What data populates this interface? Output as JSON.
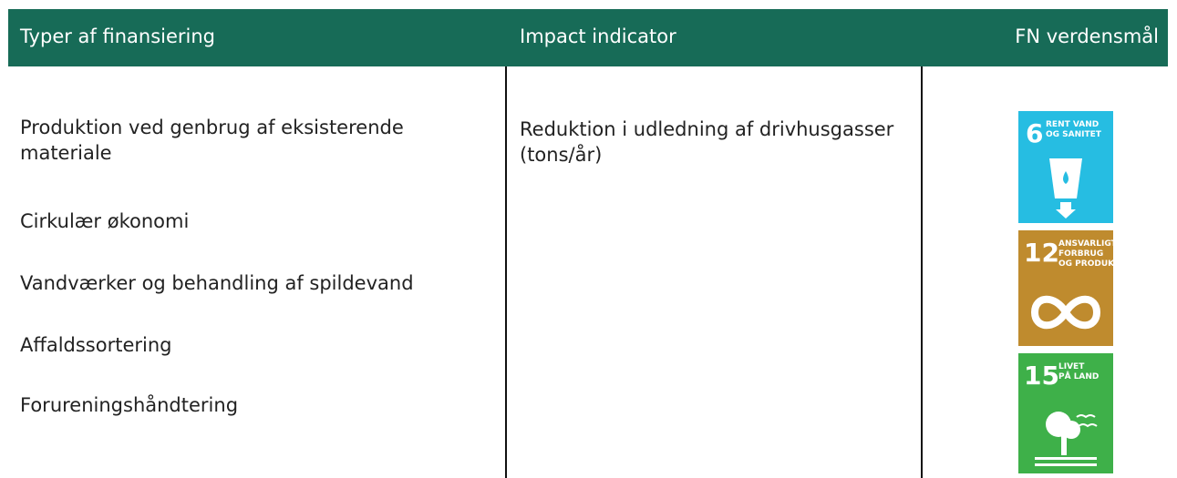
{
  "header": [
    "Typer af finansiering",
    "Impact indicator",
    "FN verdensmål"
  ],
  "financing_types": [
    "Produktion ved genbrug af eksisterende materiale",
    "Cirkulær økonomi",
    "Vandværker og behandling af spildevand",
    "Affaldssortering",
    "Forureningshåndtering"
  ],
  "impact_indicator": "Reduktion i udledning af drivhusgasser (tons/år)",
  "sdg_goals": [
    {
      "number": "6",
      "lines": [
        "RENT VAND",
        "OG SANITET"
      ],
      "color": "#26bde2"
    },
    {
      "number": "12",
      "lines": [
        "ANSVARLIGT",
        "FORBRUG",
        "OG PRODUKTION"
      ],
      "color": "#bf8b2e"
    },
    {
      "number": "15",
      "lines": [
        "LIVET",
        "PÅ LAND"
      ],
      "color": "#3eb049"
    }
  ]
}
